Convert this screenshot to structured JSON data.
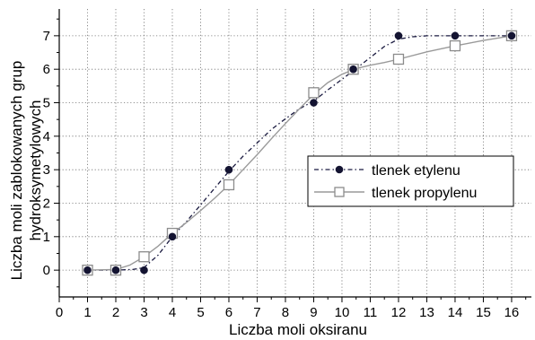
{
  "chart_data": {
    "type": "line",
    "xlabel": "Liczba moli oksiranu",
    "ylabel": [
      "Liczba moli zablokowanych grup",
      "hydroksymetylowych"
    ],
    "xlim": [
      0,
      16.7
    ],
    "ylim": [
      -0.8,
      7.8
    ],
    "xticks": [
      0,
      1,
      2,
      3,
      4,
      5,
      6,
      7,
      8,
      9,
      10,
      11,
      12,
      13,
      14,
      15,
      16
    ],
    "yticks": [
      0,
      1,
      2,
      3,
      4,
      5,
      6,
      7
    ],
    "grid": true,
    "legend_position": "right-middle",
    "series": [
      {
        "name": "tlenek etylenu",
        "marker": "filled-circle",
        "line_style": "dash-dot",
        "color": "#1a1a40",
        "points": [
          [
            1,
            0
          ],
          [
            2,
            0
          ],
          [
            3,
            0
          ],
          [
            4,
            1
          ],
          [
            6,
            3
          ],
          [
            9,
            5
          ],
          [
            10.4,
            6
          ],
          [
            12,
            7
          ],
          [
            14,
            7
          ],
          [
            16,
            7
          ]
        ],
        "curve": [
          [
            1,
            0
          ],
          [
            2,
            0
          ],
          [
            2.6,
            0.02
          ],
          [
            3,
            0.08
          ],
          [
            3.5,
            0.45
          ],
          [
            4,
            1.0
          ],
          [
            4.5,
            1.45
          ],
          [
            5,
            1.95
          ],
          [
            5.5,
            2.45
          ],
          [
            6,
            2.95
          ],
          [
            6.5,
            3.4
          ],
          [
            7,
            3.8
          ],
          [
            7.5,
            4.2
          ],
          [
            8,
            4.52
          ],
          [
            8.5,
            4.82
          ],
          [
            9,
            5.05
          ],
          [
            9.5,
            5.38
          ],
          [
            10,
            5.7
          ],
          [
            10.5,
            6.02
          ],
          [
            11,
            6.35
          ],
          [
            11.5,
            6.68
          ],
          [
            12,
            6.9
          ],
          [
            12.5,
            6.97
          ],
          [
            13,
            7.0
          ],
          [
            14,
            7.0
          ],
          [
            15,
            7.0
          ],
          [
            16,
            7.0
          ]
        ]
      },
      {
        "name": "tlenek propylenu",
        "marker": "open-square",
        "line_style": "solid",
        "color": "#9a9a9a",
        "points": [
          [
            1,
            0
          ],
          [
            2,
            0
          ],
          [
            3,
            0.4
          ],
          [
            4,
            1.1
          ],
          [
            6,
            2.55
          ],
          [
            9,
            5.3
          ],
          [
            10.4,
            6
          ],
          [
            12,
            6.3
          ],
          [
            14,
            6.7
          ],
          [
            16,
            7
          ]
        ],
        "curve": [
          [
            1,
            0
          ],
          [
            2,
            0.02
          ],
          [
            2.5,
            0.15
          ],
          [
            3,
            0.4
          ],
          [
            3.5,
            0.72
          ],
          [
            4,
            1.1
          ],
          [
            4.5,
            1.42
          ],
          [
            5,
            1.78
          ],
          [
            5.5,
            2.15
          ],
          [
            6,
            2.55
          ],
          [
            6.5,
            3.0
          ],
          [
            7,
            3.45
          ],
          [
            7.5,
            3.92
          ],
          [
            8,
            4.38
          ],
          [
            8.5,
            4.82
          ],
          [
            9,
            5.25
          ],
          [
            9.5,
            5.6
          ],
          [
            10,
            5.85
          ],
          [
            10.5,
            6.02
          ],
          [
            11,
            6.12
          ],
          [
            11.5,
            6.2
          ],
          [
            12,
            6.3
          ],
          [
            13,
            6.52
          ],
          [
            14,
            6.7
          ],
          [
            15,
            6.86
          ],
          [
            16,
            7.0
          ]
        ]
      }
    ]
  }
}
